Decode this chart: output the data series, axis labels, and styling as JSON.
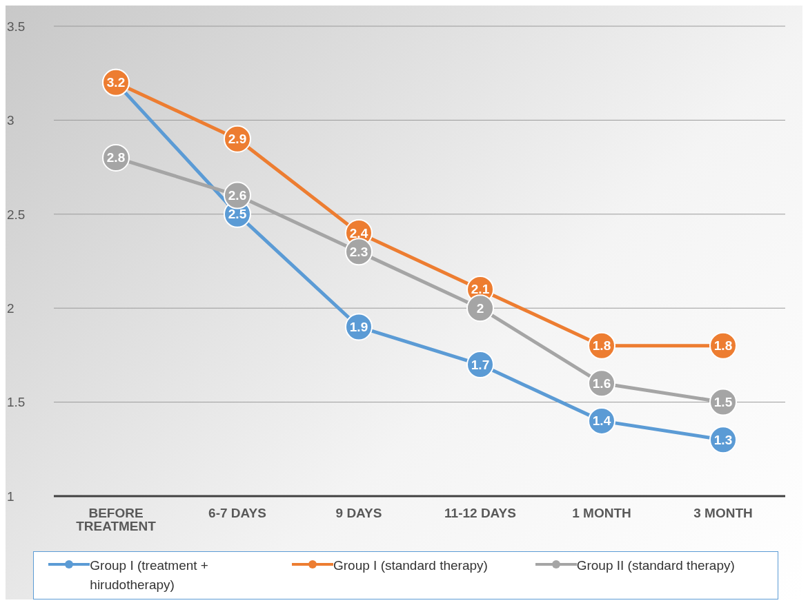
{
  "chart_data": {
    "type": "line",
    "categories": [
      "BEFORE TREATMENT",
      "6-7 DAYS",
      "9 DAYS",
      "11-12 DAYS",
      "1 MONTH",
      "3 MONTH"
    ],
    "series": [
      {
        "name": "Group I (treatment + hirudotherapy)",
        "color": "#5b9bd5",
        "values": [
          3.2,
          2.5,
          1.9,
          1.7,
          1.4,
          1.3
        ],
        "value_labels": [
          null,
          "2.5",
          "1.9",
          "1.7",
          "1.4",
          "1.3"
        ]
      },
      {
        "name": "Group I (standard therapy)",
        "color": "#ed7d31",
        "values": [
          3.2,
          2.9,
          2.4,
          2.1,
          1.8,
          1.8
        ],
        "value_labels": [
          "3.2",
          "2.9",
          "2.4",
          "2.1",
          "1.8",
          "1.8"
        ]
      },
      {
        "name": "Group II (standard therapy)",
        "color": "#a5a5a5",
        "values": [
          2.8,
          2.6,
          2.3,
          2.0,
          1.6,
          1.5
        ],
        "value_labels": [
          "2.8",
          "2.6",
          "2.3",
          "2",
          "1.6",
          "1.5"
        ]
      }
    ],
    "ylim": [
      1,
      3.5
    ],
    "yticks": [
      1,
      1.5,
      2,
      2.5,
      3,
      3.5
    ],
    "grid": "y",
    "legend": "bottom",
    "marker": "circle",
    "line_style": "solid"
  }
}
